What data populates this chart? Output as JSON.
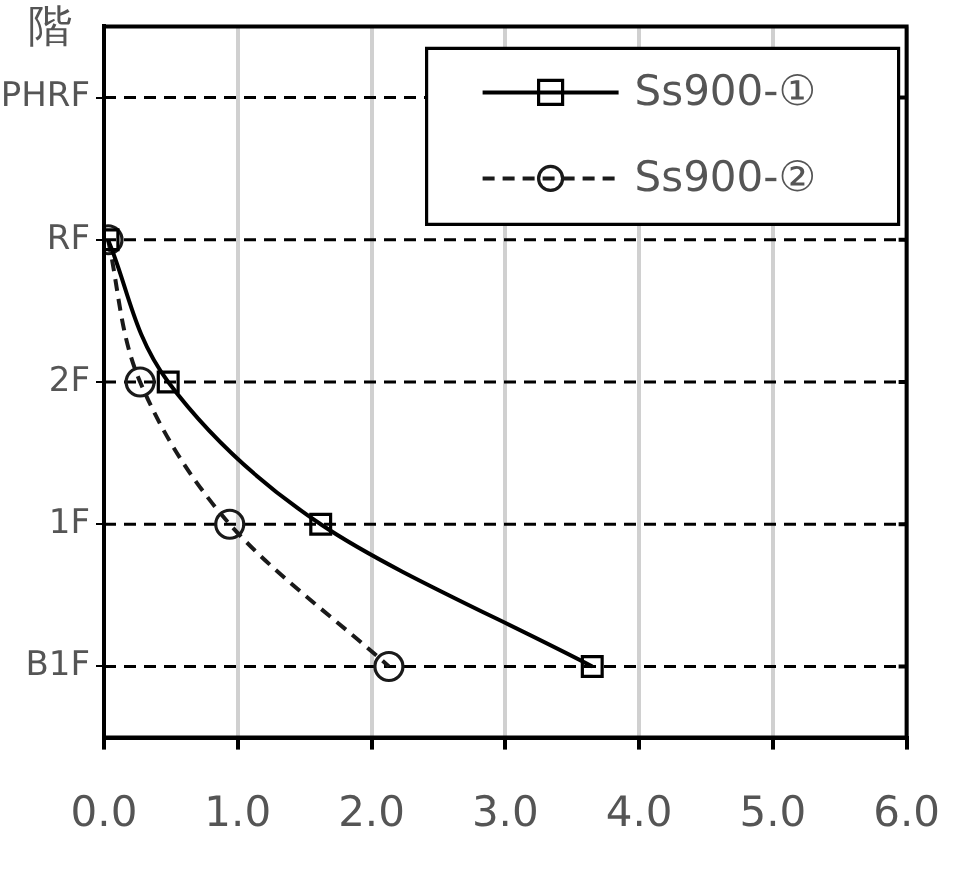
{
  "chart_data": {
    "type": "line",
    "orientation": "horizontal",
    "ylabel": "階",
    "categories": [
      "PHRF",
      "RF",
      "2F",
      "1F",
      "B1F"
    ],
    "xlim": [
      0,
      6
    ],
    "xticks": [
      {
        "value": 0,
        "label": "0.0"
      },
      {
        "value": 1,
        "label": "1.0"
      },
      {
        "value": 2,
        "label": "2.0"
      },
      {
        "value": 3,
        "label": "3.0"
      },
      {
        "value": 4,
        "label": "4.0"
      },
      {
        "value": 5,
        "label": "5.0"
      },
      {
        "value": 6,
        "label": "6.0"
      }
    ],
    "grid": true,
    "legend": "top right",
    "series": [
      {
        "name": "Ss900-①",
        "color": "#000000",
        "marker": "square",
        "line_style": "solid",
        "values": [
          null,
          0.03,
          0.48,
          1.62,
          3.65
        ]
      },
      {
        "name": "Ss900-②",
        "color": "#1a1a1a",
        "marker": "circle",
        "line_style": "dashed",
        "values": [
          null,
          0.03,
          0.27,
          0.94,
          2.13
        ]
      }
    ]
  }
}
